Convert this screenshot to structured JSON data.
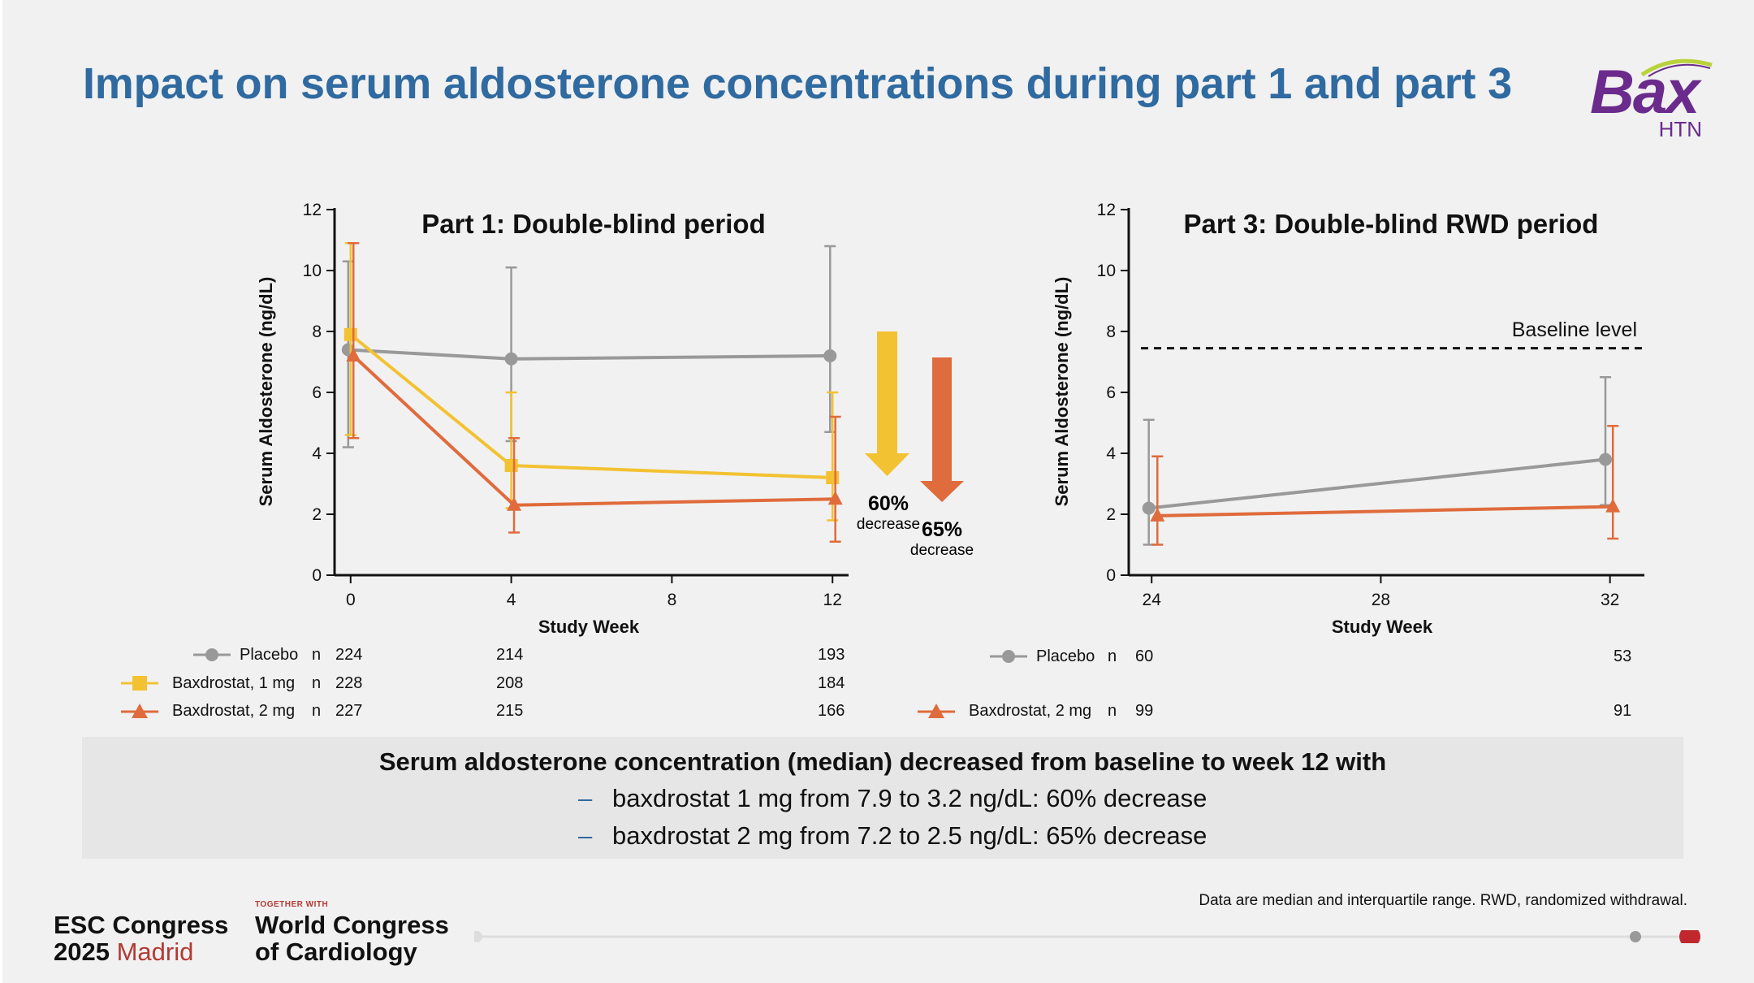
{
  "title": "Impact on serum aldosterone concentrations during part 1 and part 3",
  "logo": {
    "main": "Bax",
    "sub": "HTN"
  },
  "colors": {
    "placebo": "#999999",
    "bax1": "#f3c232",
    "bax2": "#e06b3c",
    "title": "#2f6aa0",
    "esc_red": "#b23a34"
  },
  "chart_data": [
    {
      "type": "line",
      "title": "Part 1: Double-blind period",
      "xlabel": "Study Week",
      "ylabel": "Serum Aldosterone (ng/dL)",
      "x_ticks": [
        "0",
        "4",
        "8",
        "12"
      ],
      "y_ticks": [
        "0",
        "2",
        "4",
        "6",
        "8",
        "10",
        "12"
      ],
      "xlim": [
        -0.4,
        12.4
      ],
      "ylim": [
        0,
        12
      ],
      "series": [
        {
          "name": "Placebo",
          "color": "#999999",
          "marker": "circle",
          "x": [
            0,
            4,
            12
          ],
          "y": [
            7.4,
            7.1,
            7.2
          ],
          "lo": [
            4.2,
            4.4,
            4.7
          ],
          "hi": [
            10.3,
            10.1,
            10.8
          ],
          "offset": [
            -0.06,
            0,
            -0.06
          ]
        },
        {
          "name": "Baxdrostat, 1 mg",
          "color": "#f3c232",
          "marker": "square",
          "x": [
            0,
            4,
            12
          ],
          "y": [
            7.9,
            3.6,
            3.2
          ],
          "lo": [
            4.6,
            2.2,
            1.8
          ],
          "hi": [
            10.9,
            6.0,
            6.0
          ],
          "offset": [
            0,
            0,
            0
          ]
        },
        {
          "name": "Baxdrostat, 2 mg",
          "color": "#e06b3c",
          "marker": "triangle",
          "x": [
            0,
            4,
            12
          ],
          "y": [
            7.2,
            2.3,
            2.5
          ],
          "lo": [
            4.5,
            1.4,
            1.1
          ],
          "hi": [
            10.9,
            4.5,
            5.2
          ],
          "offset": [
            0.07,
            0.07,
            0.07
          ]
        }
      ],
      "annotations": [
        {
          "percent": "60%",
          "label": "decrease",
          "color": "#f3c232"
        },
        {
          "percent": "65%",
          "label": "decrease",
          "color": "#e06b3c"
        }
      ]
    },
    {
      "type": "line",
      "title": "Part 3: Double-blind RWD period",
      "xlabel": "Study Week",
      "ylabel": "Serum Aldosterone (ng/dL)",
      "x_ticks": [
        "24",
        "28",
        "32"
      ],
      "y_ticks": [
        "0",
        "2",
        "4",
        "6",
        "8",
        "10",
        "12"
      ],
      "xlim": [
        23.6,
        32.6
      ],
      "ylim": [
        0,
        12
      ],
      "baseline": {
        "value": 7.45,
        "label": "Baseline level"
      },
      "series": [
        {
          "name": "Placebo",
          "color": "#999999",
          "marker": "circle",
          "x": [
            24,
            32
          ],
          "y": [
            2.2,
            3.8
          ],
          "lo": [
            1.0,
            2.3
          ],
          "hi": [
            5.1,
            6.5
          ],
          "offset": [
            -0.05,
            -0.08
          ]
        },
        {
          "name": "Baxdrostat, 2 mg",
          "color": "#e06b3c",
          "marker": "triangle",
          "x": [
            24,
            32
          ],
          "y": [
            1.95,
            2.25
          ],
          "lo": [
            1.0,
            1.2
          ],
          "hi": [
            3.9,
            4.9
          ],
          "offset": [
            0.1,
            0.05
          ]
        }
      ]
    }
  ],
  "n_table_part1": {
    "rows": [
      {
        "label": "Placebo",
        "n": "n",
        "values": [
          "224",
          "214",
          "193"
        ]
      },
      {
        "label": "Baxdrostat, 1 mg",
        "n": "n",
        "values": [
          "228",
          "208",
          "184"
        ]
      },
      {
        "label": "Baxdrostat, 2 mg",
        "n": "n",
        "values": [
          "227",
          "215",
          "166"
        ]
      }
    ]
  },
  "n_table_part3": {
    "rows": [
      {
        "label": "Placebo",
        "n": "n",
        "values": [
          "60",
          "53"
        ]
      },
      {
        "label": "Baxdrostat, 2 mg",
        "n": "n",
        "values": [
          "99",
          "91"
        ]
      }
    ]
  },
  "summary": {
    "heading": "Serum aldosterone concentration (median) decreased from baseline to week 12 with",
    "bullet": "–",
    "lines": [
      "baxdrostat 1 mg from 7.9 to 3.2 ng/dL: 60% decrease",
      "baxdrostat 2 mg from 7.2 to 2.5 ng/dL: 65% decrease"
    ]
  },
  "footnote": "Data are median and interquartile range. RWD, randomized withdrawal.",
  "footer": {
    "esc_line1": "ESC Congress",
    "esc_year": "2025",
    "esc_city": "Madrid",
    "wcc_small": "TOGETHER WITH",
    "wcc_line1": "World Congress",
    "wcc_line2": "of Cardiology"
  }
}
